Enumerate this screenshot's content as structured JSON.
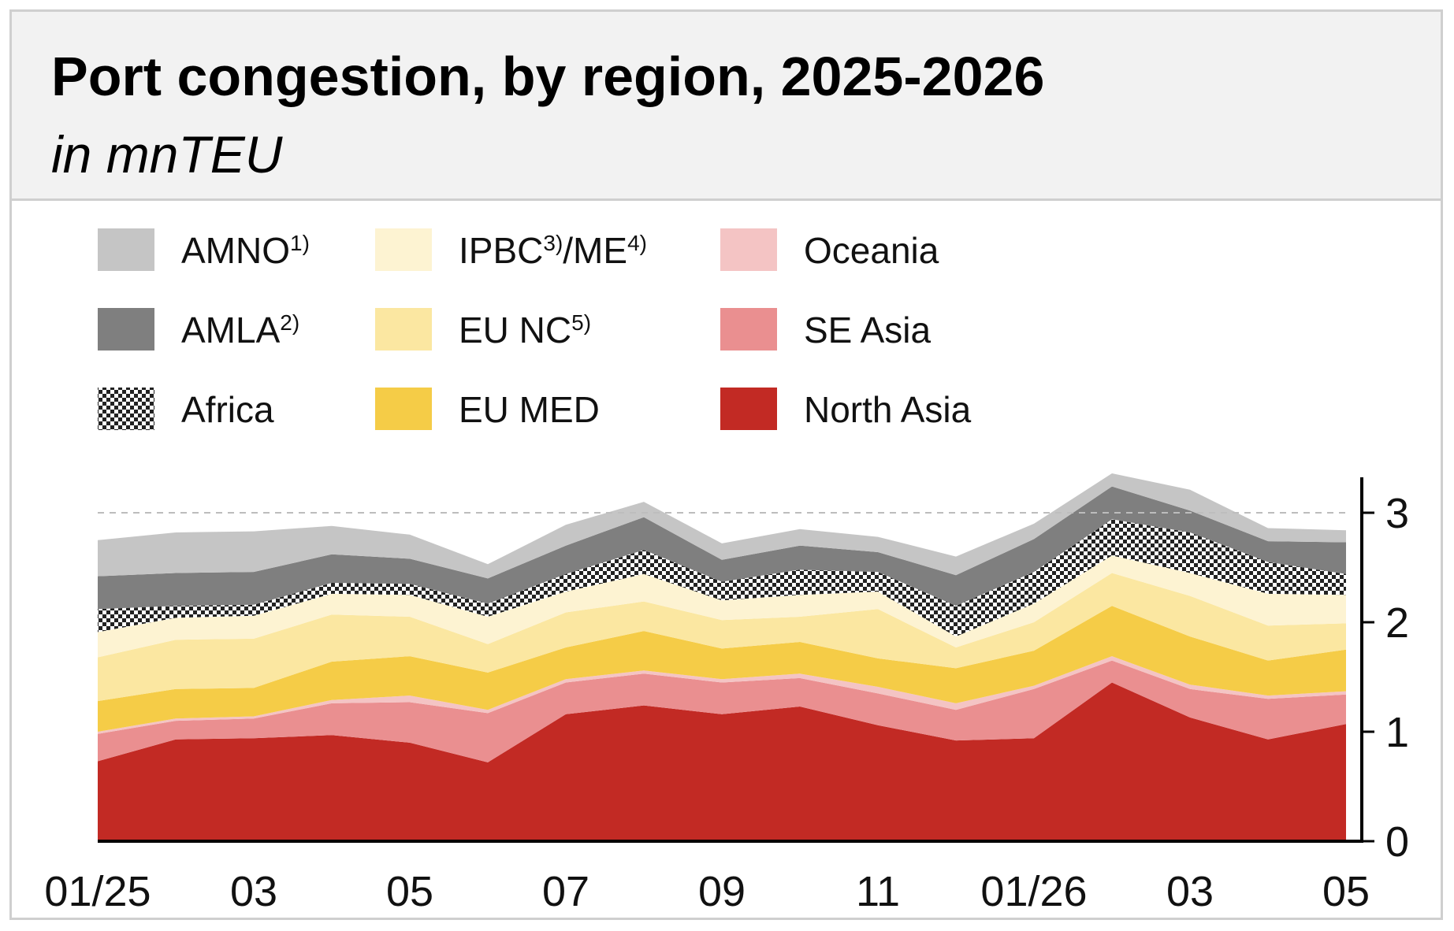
{
  "title": "Port congestion, by region, 2025-2026",
  "subtitle": "in mnTEU",
  "chart_data": {
    "type": "area",
    "stacked": true,
    "title": "Port congestion, by region, 2025-2026",
    "subtitle": "in mnTEU",
    "ylabel": "",
    "ylim": [
      0,
      3.3
    ],
    "y_ticks": [
      "0",
      "1",
      "2",
      "3"
    ],
    "x_tick_labels": [
      "01/25",
      "03",
      "05",
      "07",
      "09",
      "11",
      "01/26",
      "03",
      "05"
    ],
    "reference_line": {
      "value": 3,
      "style": "dashed"
    },
    "legend_position": "top",
    "x": [
      "01/25",
      "02/25",
      "03/25",
      "04/25",
      "05/25",
      "06/25",
      "07/25",
      "08/25",
      "09/25",
      "10/25",
      "11/25",
      "12/25",
      "01/26",
      "02/26",
      "03/26",
      "04/26",
      "05/26"
    ],
    "series": [
      {
        "name": "North Asia",
        "label": "North Asia",
        "sup": "",
        "color": "#c22a24",
        "pattern": false,
        "values": [
          0.73,
          0.93,
          0.94,
          0.97,
          0.9,
          0.72,
          1.16,
          1.24,
          1.16,
          1.23,
          1.06,
          0.92,
          0.94,
          1.45,
          1.13,
          0.93,
          1.07
        ]
      },
      {
        "name": "SE Asia",
        "label": "SE Asia",
        "sup": "",
        "color": "#ea8f90",
        "pattern": false,
        "values": [
          0.25,
          0.17,
          0.18,
          0.29,
          0.37,
          0.45,
          0.29,
          0.29,
          0.29,
          0.26,
          0.29,
          0.28,
          0.45,
          0.2,
          0.26,
          0.37,
          0.27
        ]
      },
      {
        "name": "Oceania",
        "label": "Oceania",
        "sup": "",
        "color": "#f4c4c4",
        "pattern": false,
        "values": [
          0.02,
          0.02,
          0.02,
          0.03,
          0.06,
          0.03,
          0.03,
          0.03,
          0.03,
          0.04,
          0.06,
          0.06,
          0.03,
          0.04,
          0.04,
          0.03,
          0.03
        ]
      },
      {
        "name": "EU MED",
        "label": "EU MED",
        "sup": "",
        "color": "#f5cc47",
        "pattern": false,
        "values": [
          0.28,
          0.27,
          0.26,
          0.35,
          0.36,
          0.34,
          0.29,
          0.36,
          0.28,
          0.29,
          0.26,
          0.32,
          0.32,
          0.46,
          0.44,
          0.32,
          0.38
        ]
      },
      {
        "name": "EU NC",
        "label": "EU NC",
        "sup": "5)",
        "color": "#fbe7a1",
        "pattern": false,
        "values": [
          0.4,
          0.45,
          0.45,
          0.43,
          0.36,
          0.26,
          0.32,
          0.27,
          0.26,
          0.23,
          0.45,
          0.19,
          0.26,
          0.3,
          0.37,
          0.32,
          0.24
        ]
      },
      {
        "name": "IPBC/ME",
        "label": "IPBC",
        "mid": "/ME",
        "sup": "3)",
        "sup2": "4)",
        "color": "#fdf3d2",
        "pattern": false,
        "values": [
          0.23,
          0.2,
          0.21,
          0.19,
          0.2,
          0.25,
          0.19,
          0.25,
          0.18,
          0.2,
          0.16,
          0.1,
          0.17,
          0.16,
          0.21,
          0.29,
          0.26
        ]
      },
      {
        "name": "Africa",
        "label": "Africa",
        "sup": "",
        "color": "#222222",
        "pattern": true,
        "values": [
          0.21,
          0.11,
          0.1,
          0.1,
          0.1,
          0.12,
          0.16,
          0.22,
          0.17,
          0.23,
          0.18,
          0.28,
          0.29,
          0.33,
          0.37,
          0.29,
          0.19
        ]
      },
      {
        "name": "AMLA",
        "label": "AMLA",
        "sup": "2)",
        "color": "#7f7f7f",
        "pattern": false,
        "values": [
          0.3,
          0.3,
          0.3,
          0.26,
          0.23,
          0.23,
          0.26,
          0.3,
          0.2,
          0.22,
          0.18,
          0.28,
          0.3,
          0.3,
          0.2,
          0.19,
          0.29
        ]
      },
      {
        "name": "AMNO",
        "label": "AMNO",
        "sup": "1)",
        "color": "#c5c5c5",
        "pattern": false,
        "values": [
          0.33,
          0.37,
          0.37,
          0.26,
          0.22,
          0.13,
          0.19,
          0.14,
          0.15,
          0.15,
          0.14,
          0.17,
          0.14,
          0.12,
          0.19,
          0.12,
          0.11
        ]
      }
    ]
  }
}
